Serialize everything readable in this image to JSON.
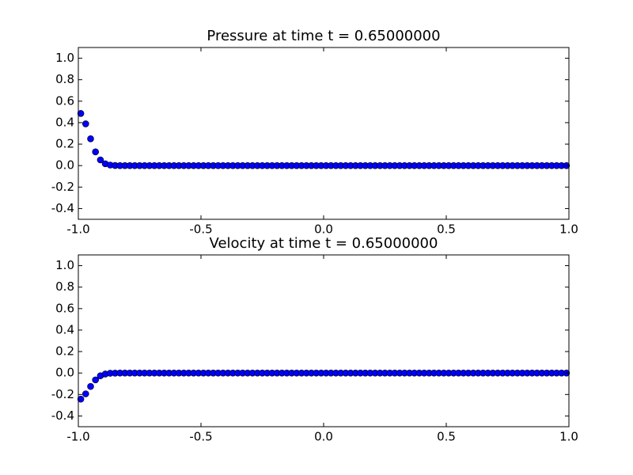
{
  "chart_data": [
    {
      "type": "scatter",
      "title": "Pressure at time t =     0.65000000",
      "x": [
        -0.99,
        -0.97,
        -0.95,
        -0.93,
        -0.91,
        -0.89,
        -0.87,
        -0.85,
        -0.83,
        -0.81,
        -0.79,
        -0.77,
        -0.75,
        -0.73,
        -0.71,
        -0.69,
        -0.67,
        -0.65,
        -0.63,
        -0.61,
        -0.59,
        -0.57,
        -0.55,
        -0.53,
        -0.51,
        -0.49,
        -0.47,
        -0.45,
        -0.43,
        -0.41,
        -0.39,
        -0.37,
        -0.35,
        -0.33,
        -0.31,
        -0.29,
        -0.27,
        -0.25,
        -0.23,
        -0.21,
        -0.19,
        -0.17,
        -0.15,
        -0.13,
        -0.11,
        -0.09,
        -0.07,
        -0.05,
        -0.03,
        -0.01,
        0.01,
        0.03,
        0.05,
        0.07,
        0.09,
        0.11,
        0.13,
        0.15,
        0.17,
        0.19,
        0.21,
        0.23,
        0.25,
        0.27,
        0.29,
        0.31,
        0.33,
        0.35,
        0.37,
        0.39,
        0.41,
        0.43,
        0.45,
        0.47,
        0.49,
        0.51,
        0.53,
        0.55,
        0.57,
        0.59,
        0.61,
        0.63,
        0.65,
        0.67,
        0.69,
        0.71,
        0.73,
        0.75,
        0.77,
        0.79,
        0.81,
        0.83,
        0.85,
        0.87,
        0.89,
        0.91,
        0.93,
        0.95,
        0.97,
        0.99
      ],
      "values": [
        0.486,
        0.389,
        0.25,
        0.128,
        0.053,
        0.017,
        0.005,
        0.001,
        0,
        0,
        0,
        0,
        0,
        0,
        0,
        0,
        0,
        0,
        0,
        0,
        0,
        0,
        0,
        0,
        0,
        0,
        0,
        0,
        0,
        0,
        0,
        0,
        0,
        0,
        0,
        0,
        0,
        0,
        0,
        0,
        0,
        0,
        0,
        0,
        0,
        0,
        0,
        0,
        0,
        0,
        0,
        0,
        0,
        0,
        0,
        0,
        0,
        0,
        0,
        0,
        0,
        0,
        0,
        0,
        0,
        0,
        0,
        0,
        0,
        0,
        0,
        0,
        0,
        0,
        0,
        0,
        0,
        0,
        0,
        0,
        0,
        0,
        0,
        0,
        0,
        0,
        0,
        0,
        0,
        0,
        0,
        0,
        0,
        0,
        0,
        0,
        0,
        0,
        0,
        0
      ],
      "color": "#0000ff",
      "xlim": [
        -1,
        1
      ],
      "xticks": [
        {
          "value": -1,
          "label": "-1.0"
        },
        -0.5,
        {
          "value": 0,
          "label": "0.0"
        },
        0.5,
        {
          "value": 1,
          "label": "1.0"
        }
      ],
      "ylim": [
        -0.5,
        1.1
      ],
      "yticks": [
        -0.4,
        -0.2,
        {
          "value": 0,
          "label": "0.0"
        },
        0.2,
        0.4,
        0.6,
        0.8,
        {
          "value": 1,
          "label": "1.0"
        }
      ]
    },
    {
      "type": "scatter",
      "title": "Velocity at time t =     0.65000000",
      "x": [
        -0.99,
        -0.97,
        -0.95,
        -0.93,
        -0.91,
        -0.89,
        -0.87,
        -0.85,
        -0.83,
        -0.81,
        -0.79,
        -0.77,
        -0.75,
        -0.73,
        -0.71,
        -0.69,
        -0.67,
        -0.65,
        -0.63,
        -0.61,
        -0.59,
        -0.57,
        -0.55,
        -0.53,
        -0.51,
        -0.49,
        -0.47,
        -0.45,
        -0.43,
        -0.41,
        -0.39,
        -0.37,
        -0.35,
        -0.33,
        -0.31,
        -0.29,
        -0.27,
        -0.25,
        -0.23,
        -0.21,
        -0.19,
        -0.17,
        -0.15,
        -0.13,
        -0.11,
        -0.09,
        -0.07,
        -0.05,
        -0.03,
        -0.01,
        0.01,
        0.03,
        0.05,
        0.07,
        0.09,
        0.11,
        0.13,
        0.15,
        0.17,
        0.19,
        0.21,
        0.23,
        0.25,
        0.27,
        0.29,
        0.31,
        0.33,
        0.35,
        0.37,
        0.39,
        0.41,
        0.43,
        0.45,
        0.47,
        0.49,
        0.51,
        0.53,
        0.55,
        0.57,
        0.59,
        0.61,
        0.63,
        0.65,
        0.67,
        0.69,
        0.71,
        0.73,
        0.75,
        0.77,
        0.79,
        0.81,
        0.83,
        0.85,
        0.87,
        0.89,
        0.91,
        0.93,
        0.95,
        0.97,
        0.99
      ],
      "values": [
        -0.243,
        -0.194,
        -0.125,
        -0.064,
        -0.026,
        -0.009,
        -0.002,
        -0.001,
        0,
        0,
        0,
        0,
        0,
        0,
        0,
        0,
        0,
        0,
        0,
        0,
        0,
        0,
        0,
        0,
        0,
        0,
        0,
        0,
        0,
        0,
        0,
        0,
        0,
        0,
        0,
        0,
        0,
        0,
        0,
        0,
        0,
        0,
        0,
        0,
        0,
        0,
        0,
        0,
        0,
        0,
        0,
        0,
        0,
        0,
        0,
        0,
        0,
        0,
        0,
        0,
        0,
        0,
        0,
        0,
        0,
        0,
        0,
        0,
        0,
        0,
        0,
        0,
        0,
        0,
        0,
        0,
        0,
        0,
        0,
        0,
        0,
        0,
        0,
        0,
        0,
        0,
        0,
        0,
        0,
        0,
        0,
        0,
        0,
        0,
        0,
        0,
        0,
        0,
        0,
        0
      ],
      "color": "#0000ff",
      "xlim": [
        -1,
        1
      ],
      "xticks": [
        {
          "value": -1,
          "label": "-1.0"
        },
        -0.5,
        {
          "value": 0,
          "label": "0.0"
        },
        0.5,
        {
          "value": 1,
          "label": "1.0"
        }
      ],
      "ylim": [
        -0.5,
        1.1
      ],
      "yticks": [
        -0.4,
        -0.2,
        {
          "value": 0,
          "label": "0.0"
        },
        0.2,
        0.4,
        0.6,
        0.8,
        {
          "value": 1,
          "label": "1.0"
        }
      ]
    }
  ]
}
